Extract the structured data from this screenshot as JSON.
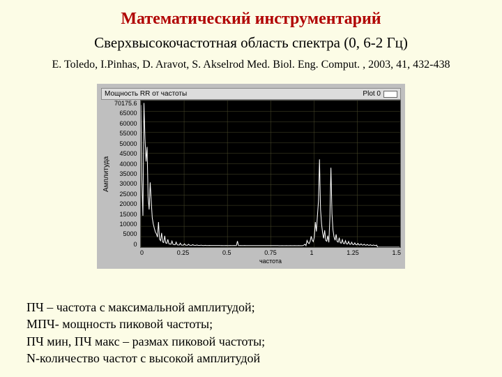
{
  "title": "Математический инструментарий",
  "subtitle": "Сверхвысокочастотная область спектра (0, 6-2 Гц)",
  "citation": "E. Toledo, I.Pinhas, D. Aravot, S. Akselrod Med. Biol. Eng. Comput. , 2003, 41, 432-438",
  "chart": {
    "type": "line",
    "header_left": "Мощность RR от частоты",
    "legend_label": "Plot 0",
    "y_label": "Амплитуда",
    "x_label": "частота",
    "background_color": "#000000",
    "panel_color": "#bfbfbf",
    "header_bg": "#dcdcdc",
    "line_color": "#ffffff",
    "grid_color": "#4a4a2a",
    "xlim": [
      0,
      1.5
    ],
    "ylim": [
      0,
      70175.6
    ],
    "xtick_step": 0.25,
    "xticks": [
      "0",
      "0.25",
      "0.5",
      "0.75",
      "1",
      "1.25",
      "1.5"
    ],
    "yticks": [
      "70175.6",
      "65000",
      "60000",
      "55000",
      "50000",
      "45000",
      "40000",
      "35000",
      "30000",
      "25000",
      "20000",
      "15000",
      "10000",
      "5000",
      "0"
    ],
    "series": {
      "x_step": 0.006,
      "values": [
        68000,
        32000,
        15000,
        69000,
        52000,
        41000,
        48000,
        24000,
        18000,
        31000,
        22000,
        14000,
        11000,
        9000,
        7200,
        6400,
        4800,
        12000,
        3800,
        3100,
        6800,
        2500,
        2200,
        5400,
        2000,
        1800,
        3700,
        1600,
        1500,
        1400,
        2900,
        1300,
        1200,
        1150,
        2400,
        1100,
        1050,
        1020,
        1900,
        1000,
        980,
        960,
        1600,
        940,
        920,
        910,
        1400,
        900,
        890,
        880,
        1200,
        870,
        860,
        850,
        1050,
        840,
        830,
        820,
        950,
        815,
        810,
        805,
        880,
        800,
        795,
        790,
        830,
        788,
        786,
        784,
        800,
        782,
        780,
        778,
        790,
        776,
        774,
        772,
        785,
        770,
        769,
        768,
        780,
        767,
        766,
        765,
        778,
        764,
        763,
        762,
        776,
        761,
        760,
        2900,
        759,
        758,
        775,
        757,
        756,
        755,
        774,
        754,
        753,
        752,
        773,
        751,
        750,
        749,
        772,
        748,
        747,
        746,
        771,
        745,
        744,
        743,
        770,
        742,
        741,
        740,
        769,
        739,
        738,
        737,
        768,
        736,
        735,
        734,
        767,
        733,
        732,
        731,
        766,
        730,
        729,
        728,
        765,
        727,
        726,
        725,
        764,
        724,
        723,
        722,
        763,
        721,
        720,
        719,
        762,
        718,
        717,
        716,
        761,
        715,
        714,
        713,
        760,
        1000,
        1400,
        712,
        3200,
        2100,
        1700,
        2800,
        5200,
        3400,
        2600,
        4800,
        12000,
        7500,
        15000,
        22000,
        42000,
        18000,
        11000,
        6800,
        4200,
        8100,
        3200,
        2800,
        5500,
        2300,
        14000,
        38000,
        16000,
        8200,
        4900,
        3300,
        6100,
        2700,
        2400,
        4500,
        2100,
        1900,
        3600,
        1750,
        1650,
        3100,
        1560,
        1480,
        2700,
        1400,
        1340,
        2350,
        1280,
        1230,
        2050,
        1180,
        1140,
        1800,
        1100,
        1060,
        1600,
        1020,
        990,
        1420,
        960,
        930,
        1260,
        900,
        880,
        1140,
        860,
        840,
        1040,
        820,
        800,
        960,
        0,
        0,
        0,
        0,
        0,
        0,
        0,
        0,
        0,
        0,
        0,
        0,
        0,
        0,
        0,
        0,
        0,
        0,
        0,
        0,
        0,
        0
      ]
    }
  },
  "definitions": [
    "ПЧ – частота с максимальной амплитудой;",
    "МПЧ- мощность пиковой частоты;",
    "ПЧ мин, ПЧ макс – размах пиковой частоты;",
    "N-количество частот с высокой амплитудой"
  ],
  "colors": {
    "page_bg": "#fcfce6",
    "title_color": "#b00000",
    "text_color": "#000000"
  }
}
